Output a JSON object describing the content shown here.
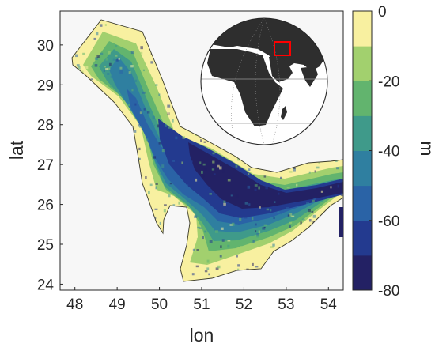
{
  "map": {
    "x_axis": {
      "label": "lon",
      "ticks": [
        "48",
        "49",
        "50",
        "51",
        "52",
        "53",
        "54"
      ],
      "tick_values": [
        48,
        49,
        50,
        51,
        52,
        53,
        54
      ],
      "range": [
        47.65,
        54.35
      ]
    },
    "y_axis": {
      "label": "lat",
      "ticks": [
        "24",
        "25",
        "26",
        "27",
        "28",
        "29",
        "30"
      ],
      "tick_values": [
        24,
        25,
        26,
        27,
        28,
        29,
        30
      ],
      "range": [
        23.85,
        30.85
      ]
    },
    "colorbar": {
      "unit": "m",
      "ticks": [
        "0",
        "-20",
        "-40",
        "-60",
        "-80"
      ],
      "tick_values": [
        0,
        -20,
        -40,
        -60,
        -80
      ],
      "range": [
        -80,
        0
      ],
      "levels": 8,
      "colors": [
        "#232164",
        "#233a8f",
        "#2a63a6",
        "#2f7fa0",
        "#3f9a8a",
        "#62b46e",
        "#a2d06e",
        "#f8f0a0"
      ]
    },
    "inset": {
      "type": "orthographic-globe",
      "highlight_color": "#ff0000"
    },
    "background_color": "#f7f7f7"
  }
}
